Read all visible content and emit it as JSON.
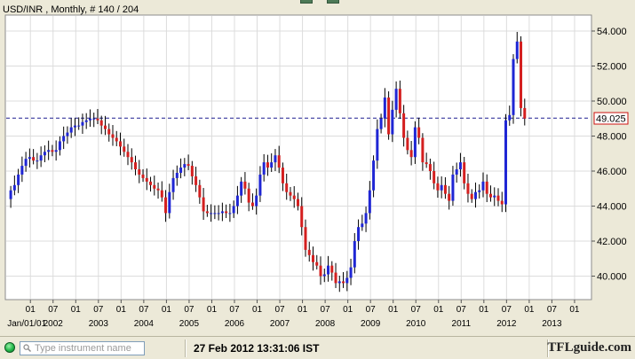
{
  "chart": {
    "title": "USD/INR , Monthly, # 140 / 204",
    "current_value": "49.025",
    "colors": {
      "up": "#1f26d4",
      "down": "#d41f1f",
      "reference_line": "#1f1f8f",
      "value_box_border": "#cc1111",
      "grid": "#dcdcdc"
    }
  },
  "chart_data": {
    "type": "candlestick",
    "title": "USD/INR , Monthly, # 140 / 204",
    "ylim": [
      39,
      55
    ],
    "yticks": [
      "54.000",
      "52.000",
      "50.000",
      "48.000",
      "46.000",
      "44.000",
      "42.000",
      "40.000"
    ],
    "ytick_values": [
      54,
      52,
      50,
      48,
      46,
      44,
      42,
      40
    ],
    "reference_line": 49.025,
    "x_month_labels": [
      "01",
      "07",
      "01",
      "07",
      "01",
      "07",
      "01",
      "07",
      "01",
      "07",
      "01",
      "07",
      "01",
      "07",
      "01",
      "07",
      "01",
      "07",
      "01",
      "07",
      "01",
      "07",
      "01",
      "07",
      "01"
    ],
    "x_year_labels": [
      "Jan/01/01",
      "2002",
      "2003",
      "2004",
      "2005",
      "2006",
      "2007",
      "2008",
      "2009",
      "2010",
      "2011",
      "2012",
      "2013"
    ],
    "x_start": "2001-01",
    "grid": true,
    "closes": [
      44.9,
      45.2,
      45.8,
      46.3,
      46.7,
      46.8,
      46.6,
      46.6,
      46.9,
      47.1,
      47.2,
      47.1,
      47.2,
      47.7,
      48.0,
      48.2,
      48.5,
      48.6,
      48.6,
      48.8,
      48.9,
      49.0,
      49.0,
      48.9,
      48.6,
      48.4,
      48.1,
      47.9,
      47.7,
      47.4,
      47.1,
      46.8,
      46.5,
      46.1,
      45.8,
      45.6,
      45.4,
      45.2,
      45.0,
      44.9,
      44.5,
      43.6,
      44.8,
      45.6,
      45.9,
      46.2,
      46.4,
      46.3,
      45.7,
      45.2,
      44.5,
      43.7,
      43.6,
      43.6,
      43.6,
      43.6,
      43.7,
      43.6,
      43.6,
      44.0,
      44.6,
      45.4,
      45.0,
      44.2,
      44.0,
      44.6,
      45.8,
      46.5,
      46.2,
      46.5,
      46.9,
      46.2,
      45.3,
      44.8,
      44.6,
      44.4,
      44.0,
      42.8,
      41.5,
      41.2,
      40.8,
      40.6,
      40.0,
      40.1,
      40.6,
      40.2,
      39.6,
      39.7,
      39.6,
      39.9,
      40.5,
      42.0,
      42.8,
      43.0,
      43.6,
      44.9,
      46.6,
      48.4,
      49.0,
      50.2,
      48.1,
      49.5,
      50.7,
      49.3,
      47.9,
      47.2,
      46.8,
      48.5,
      47.9,
      46.5,
      46.4,
      46.0,
      45.3,
      44.9,
      45.2,
      44.7,
      44.3,
      45.8,
      46.1,
      46.5,
      45.3,
      44.7,
      44.4,
      44.8,
      44.9,
      45.4,
      44.7,
      44.5,
      44.6,
      44.3,
      44.1,
      48.9,
      49.2,
      52.4,
      53.4,
      49.6,
      49.0
    ],
    "x": [],
    "xlabel": "",
    "ylabel": ""
  },
  "statusbar": {
    "search_placeholder": "Type instrument name",
    "timestamp": "27 Feb 2012 13:31:06 IST",
    "site": "TFLguide.com"
  }
}
